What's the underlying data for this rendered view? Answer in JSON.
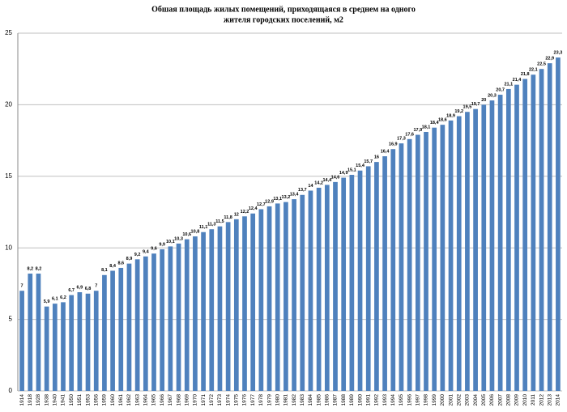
{
  "chart_data": {
    "type": "bar",
    "title": [
      "Обшая площадь жилых  помещений, приходящаяся в среднем на одного",
      "жителя городских поселений, м2"
    ],
    "categories": [
      "1914",
      "1918",
      "1928",
      "1938",
      "1940",
      "1941",
      "1950",
      "1951",
      "1953",
      "1956",
      "1959",
      "1960",
      "1961",
      "1962",
      "1963",
      "1964",
      "1965",
      "1966",
      "1967",
      "1968",
      "1969",
      "1970",
      "1971",
      "1972",
      "1973",
      "1974",
      "1975",
      "1976",
      "1977",
      "1978",
      "1979",
      "1980",
      "1981",
      "1982",
      "1983",
      "1984",
      "1985",
      "1986",
      "1987",
      "1988",
      "1989",
      "1990",
      "1991",
      "1992",
      "1993",
      "1994",
      "1995",
      "1996",
      "1997",
      "1998",
      "1999",
      "2000",
      "2001",
      "2002",
      "2003",
      "2004",
      "2005",
      "2006",
      "2007",
      "2008",
      "2009",
      "2010",
      "2011",
      "2012",
      "2013",
      "2014"
    ],
    "values": [
      7,
      8.2,
      8.2,
      5.9,
      6.1,
      6.2,
      6.7,
      6.9,
      6.8,
      7,
      8.1,
      8.4,
      8.6,
      8.9,
      9.2,
      9.4,
      9.6,
      9.9,
      10.1,
      10.3,
      10.6,
      10.8,
      11.1,
      11.3,
      11.5,
      11.8,
      12,
      12.2,
      12.4,
      12.7,
      12.9,
      13.1,
      13.2,
      13.4,
      13.7,
      14,
      14.2,
      14.4,
      14.6,
      14.9,
      15.1,
      15.4,
      15.7,
      16,
      16.4,
      16.9,
      17.3,
      17.6,
      17.9,
      18.1,
      18.4,
      18.6,
      18.9,
      19.2,
      19.5,
      19.7,
      20,
      20.3,
      20.7,
      21.1,
      21.4,
      21.8,
      22.1,
      22.5,
      22.9,
      23.3
    ],
    "value_labels": [
      "7",
      "8,2",
      "8,2",
      "5,9",
      "6,1",
      "6,2",
      "6,7",
      "6,9",
      "6,8",
      "7",
      "8,1",
      "8,4",
      "8,6",
      "8,9",
      "9,2",
      "9,4",
      "9,6",
      "9,9",
      "10,1",
      "10,3",
      "10,6",
      "10,8",
      "11,1",
      "11,3",
      "11,5",
      "11,8",
      "12",
      "12,2",
      "12,4",
      "12,7",
      "12,9",
      "13,1",
      "13,2",
      "13,4",
      "13,7",
      "14",
      "14,2",
      "14,4",
      "14,6",
      "14,9",
      "15,1",
      "15,4",
      "15,7",
      "16",
      "16,4",
      "16,9",
      "17,3",
      "17,6",
      "17,9",
      "18,1",
      "18,4",
      "18,6",
      "18,9",
      "19,2",
      "19,5",
      "19,7",
      "20",
      "20,3",
      "20,7",
      "21,1",
      "21,4",
      "21,8",
      "22,1",
      "22,5",
      "22,9",
      "23,3"
    ],
    "color": "#4f81bd",
    "ylim": [
      0,
      25
    ],
    "yticks": [
      0,
      5,
      10,
      15,
      20,
      25
    ],
    "grid": true
  }
}
